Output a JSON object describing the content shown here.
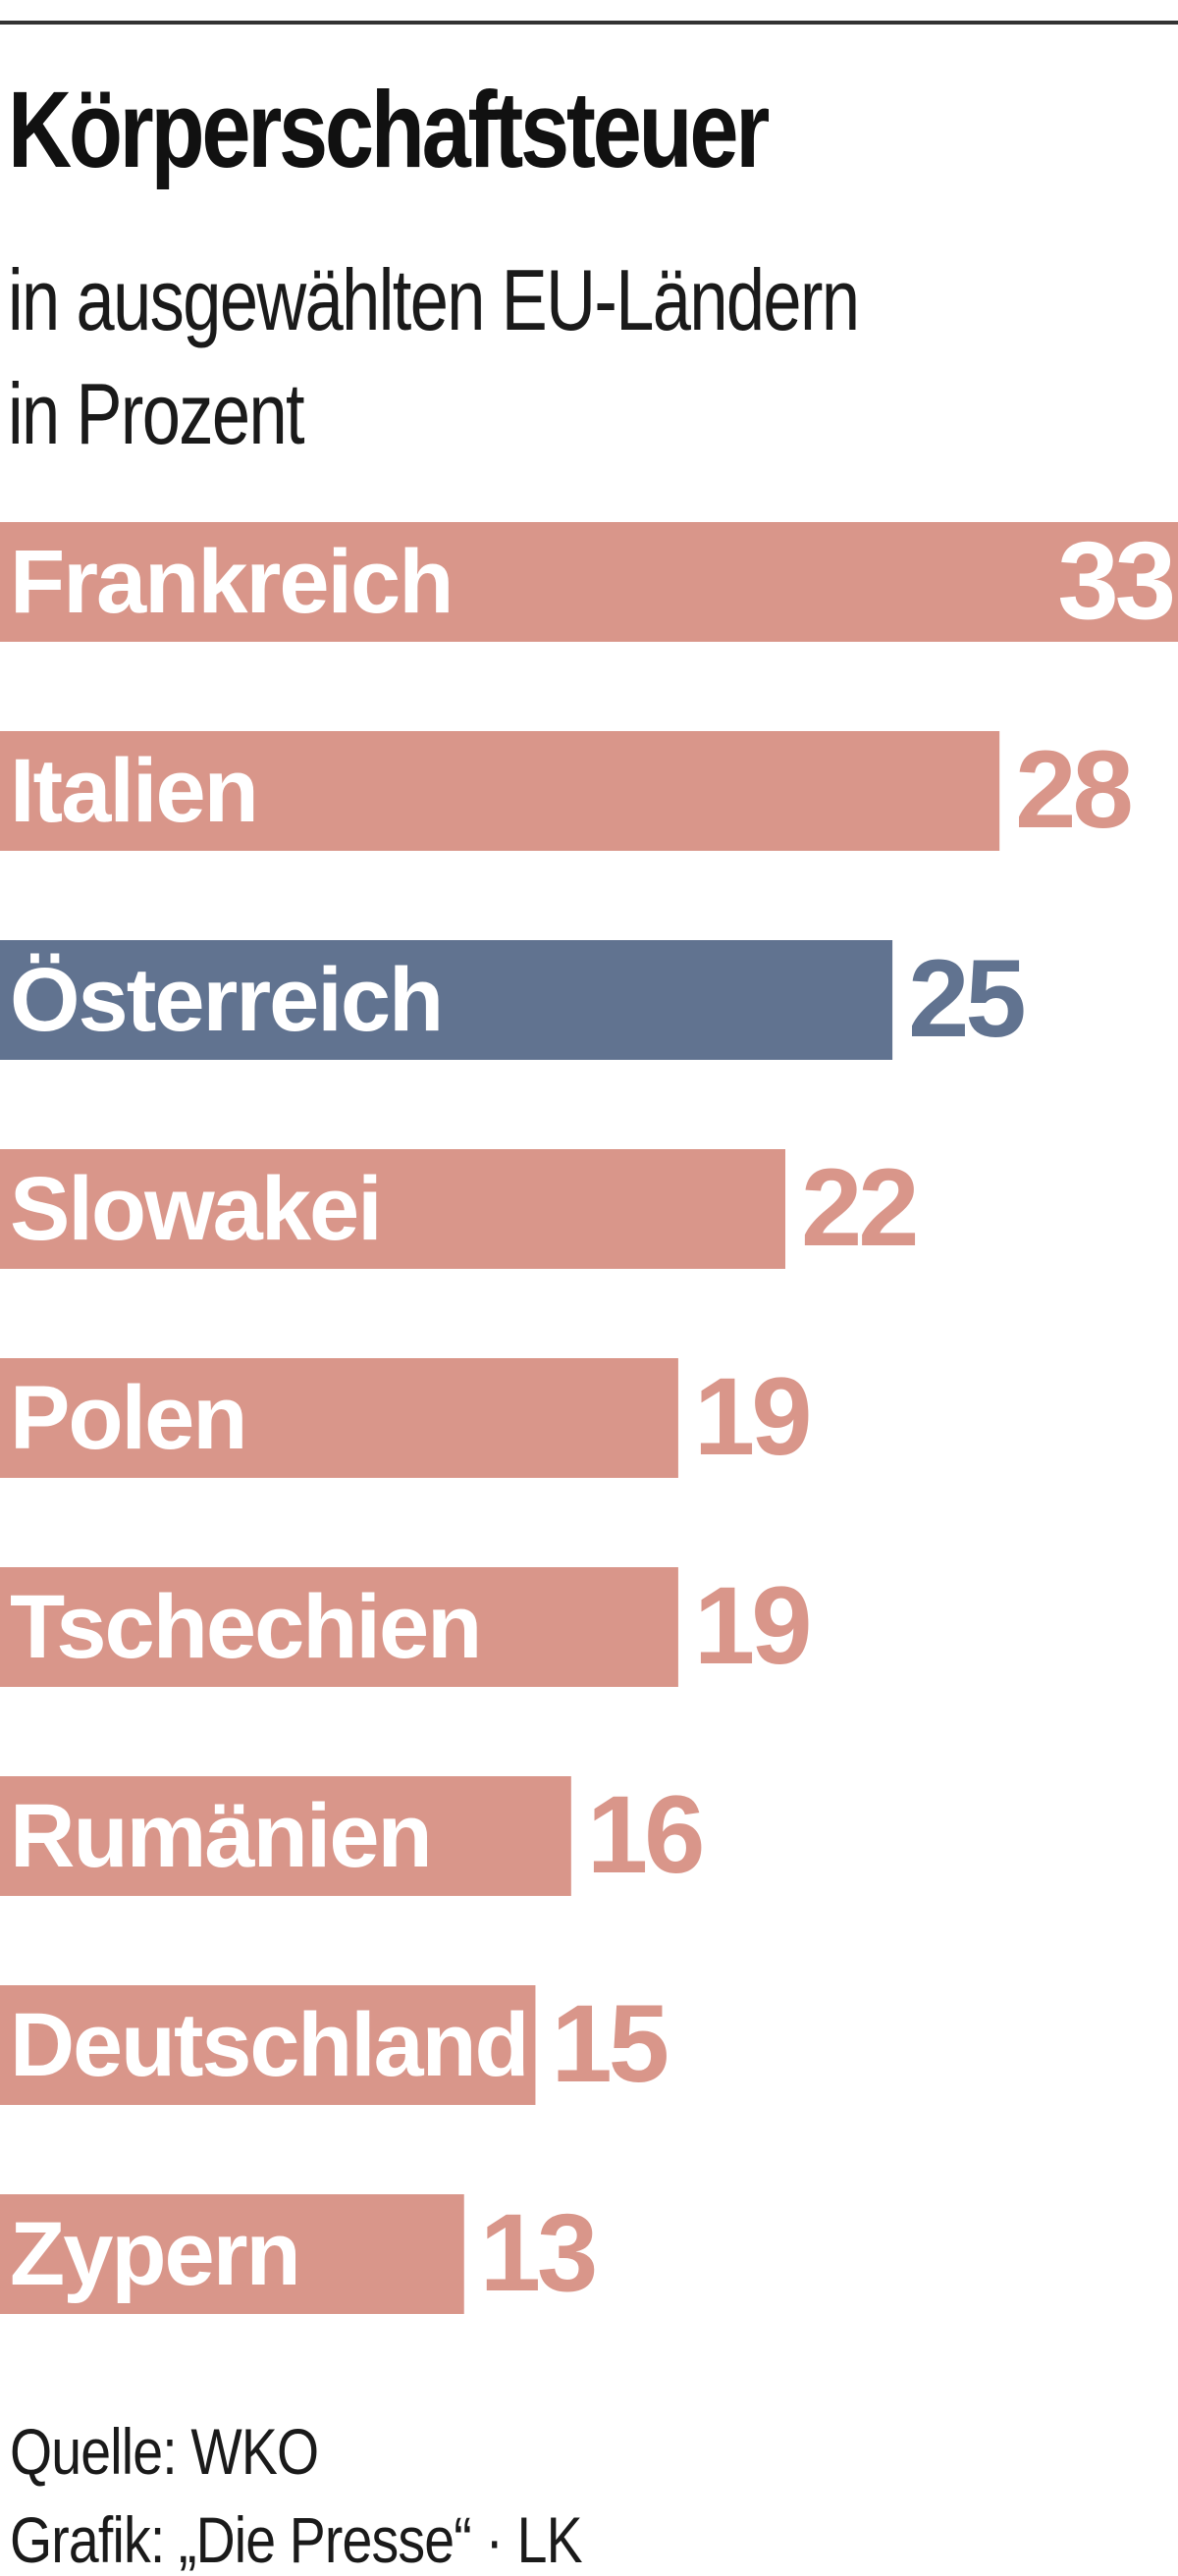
{
  "chart_data": {
    "type": "bar",
    "orientation": "horizontal",
    "title": "Körperschaftsteuer",
    "subtitle_lines": [
      "in ausgewählten EU-Ländern",
      "in Prozent"
    ],
    "categories": [
      "Frankreich",
      "Italien",
      "Österreich",
      "Slowakei",
      "Polen",
      "Tschechien",
      "Rumänien",
      "Deutschland",
      "Zypern"
    ],
    "values": [
      33,
      28,
      25,
      22,
      19,
      19,
      16,
      15,
      13
    ],
    "highlight": "Österreich",
    "xlim": [
      0,
      33
    ],
    "grid": false,
    "legend": "none",
    "colors": {
      "bar": "#d9968a",
      "highlight_bar": "#617390",
      "bar_label": "#ffffff"
    }
  },
  "footer": {
    "source": "Quelle: WKO",
    "credit": "Grafik: „Die Presse“ · LK"
  }
}
